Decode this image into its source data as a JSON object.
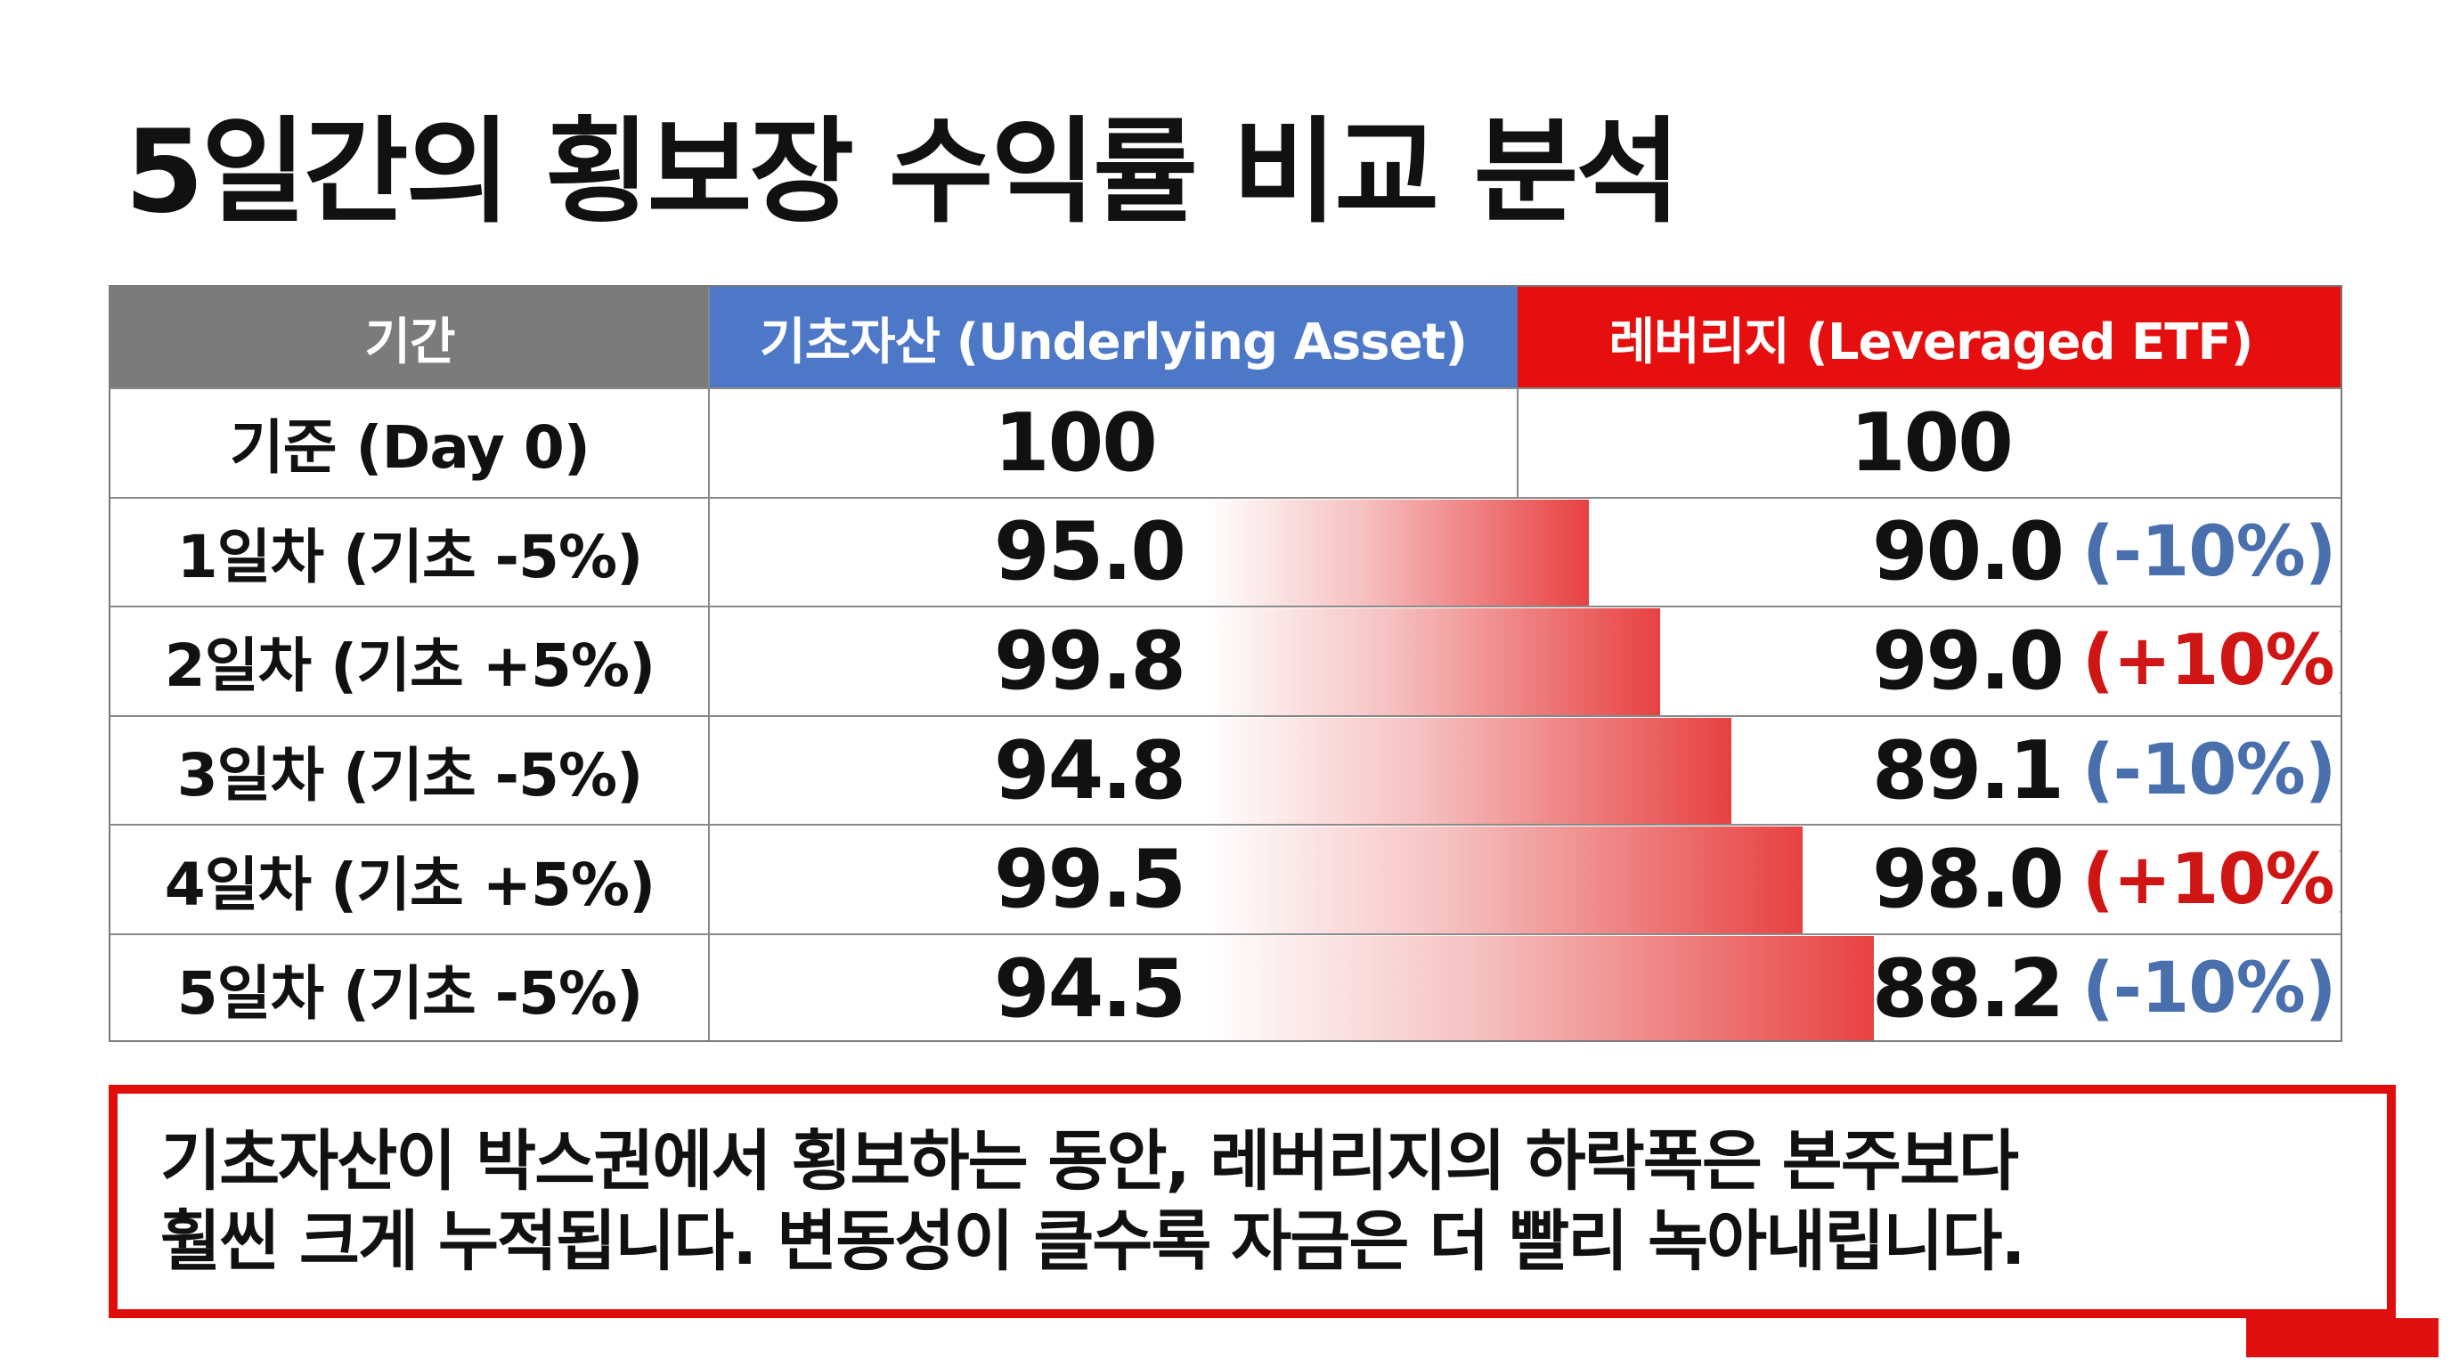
{
  "title": "5일간의 횡보장 수익률 비교 분석",
  "table": {
    "headers": [
      "기간",
      "기초자산 (Underlying Asset)",
      "레버리지 (Leveraged ETF)"
    ],
    "header_colors": [
      "#7b7b7b",
      "#4d77c7",
      "#e60f0f"
    ],
    "base": {
      "period": "기준 (Day 0)",
      "underlying": "100",
      "leveraged": "100"
    },
    "rows": [
      {
        "period": "1일차 (기초 -5%)",
        "underlying": "95.0",
        "leveraged": "90.0",
        "change": "(-10%)",
        "direction": "down"
      },
      {
        "period": "2일차 (기초 +5%)",
        "underlying": "99.8",
        "leveraged": "99.0",
        "change": "(+10%)",
        "direction": "up"
      },
      {
        "period": "3일차 (기초 -5%)",
        "underlying": "94.8",
        "leveraged": "89.1",
        "change": "(-10%)",
        "direction": "down"
      },
      {
        "period": "4일차 (기초 +5%)",
        "underlying": "99.5",
        "leveraged": "98.0",
        "change": "(+10%)",
        "direction": "up"
      },
      {
        "period": "5일차 (기초 -5%)",
        "underlying": "94.5",
        "leveraged": "88.2",
        "change": "(-10%)",
        "direction": "down"
      }
    ],
    "change_colors": {
      "down": "#4a6fad",
      "up": "#d01515"
    }
  },
  "callout": {
    "line1": "기초자산이 박스권에서 횡보하는 동안, 레버리지의 하락폭은 본주보다",
    "line2": "훨씬 크게 누적됩니다. 변동성이 클수록 자금은 더 빨리 녹아내립니다."
  }
}
